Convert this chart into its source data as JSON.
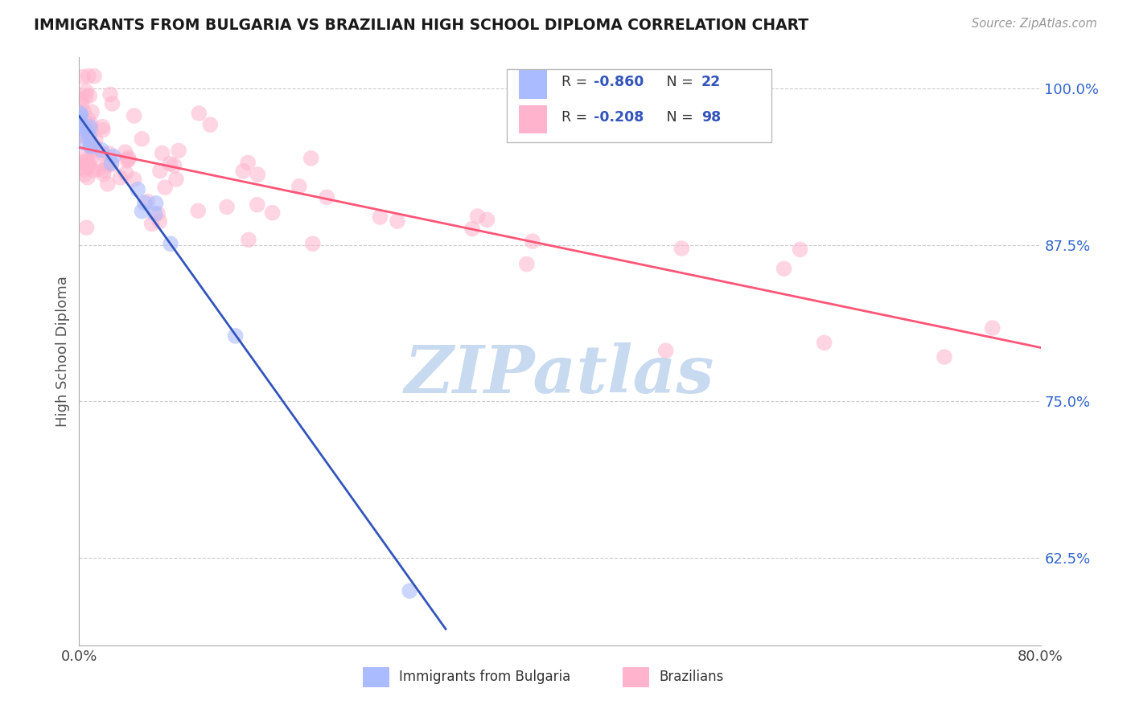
{
  "title": "IMMIGRANTS FROM BULGARIA VS BRAZILIAN HIGH SCHOOL DIPLOMA CORRELATION CHART",
  "source": "Source: ZipAtlas.com",
  "ylabel": "High School Diploma",
  "xlim": [
    0.0,
    0.8
  ],
  "ylim": [
    0.555,
    1.025
  ],
  "yticks": [
    0.625,
    0.75,
    0.875,
    1.0
  ],
  "ytick_labels": [
    "62.5%",
    "75.0%",
    "87.5%",
    "100.0%"
  ],
  "blue_color": "#AABBFF",
  "pink_color": "#FFB3CC",
  "blue_line_color": "#3355BB",
  "pink_line_color": "#FF5577",
  "r_color": "#3355BB",
  "n_color": "#3355BB",
  "blue_r": "-0.860",
  "blue_n": "22",
  "pink_r": "-0.208",
  "pink_n": "98",
  "legend_label_blue": "Immigrants from Bulgaria",
  "legend_label_pink": "Brazilians",
  "watermark_text": "ZIPatlas",
  "watermark_color": "#C8DAF0",
  "blue_line_x0": 0.0,
  "blue_line_y0": 0.978,
  "blue_line_x1": 0.305,
  "blue_line_y1": 0.568,
  "pink_line_x0": 0.0,
  "pink_line_y0": 0.953,
  "pink_line_x1": 0.8,
  "pink_line_y1": 0.793
}
